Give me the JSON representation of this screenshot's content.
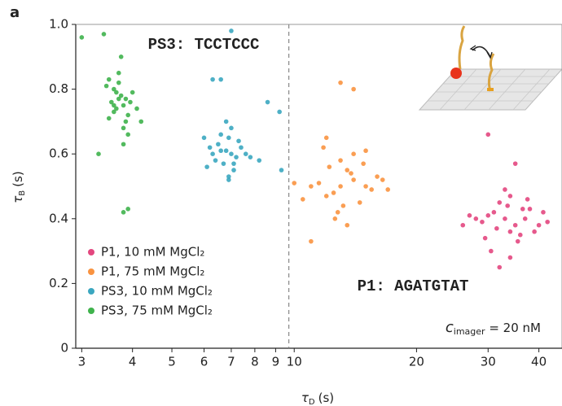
{
  "chart_data": {
    "type": "scatter",
    "panel_label": "a",
    "xlabel": {
      "symbol": "τ",
      "sub": "D",
      "unit": "(s)"
    },
    "ylabel": {
      "symbol": "τ",
      "sub": "B",
      "unit": "(s)"
    },
    "xscale": "log",
    "xlim": [
      2.9,
      45.6
    ],
    "ylim": [
      0,
      1.0
    ],
    "xticks": [
      3,
      4,
      5,
      6,
      7,
      8,
      9,
      10,
      20,
      30,
      40
    ],
    "yticks": [
      0,
      0.2,
      0.4,
      0.6,
      0.8,
      {
        "value": 1.0,
        "label": "1.0"
      }
    ],
    "vline": 9.7,
    "legend": "lower left",
    "annotations": {
      "ps3": "PS3: TCCTCCC",
      "p1": "P1: AGATGTAT",
      "conc": {
        "symbol": "c",
        "sub": "imager",
        "text": " = 20 nM"
      }
    },
    "series": [
      {
        "name": "P1, 10 mM MgCl₂",
        "color": "#e3477f",
        "x": [
          33,
          35,
          31,
          37,
          34,
          30,
          38,
          29,
          36,
          32,
          40,
          28,
          34,
          35.5,
          31.5,
          33.5,
          39,
          27,
          42,
          26,
          30.5,
          36.5,
          33,
          41,
          29.5,
          34,
          37.5,
          30,
          35,
          32
        ],
        "values": [
          0.4,
          0.38,
          0.42,
          0.4,
          0.36,
          0.41,
          0.43,
          0.39,
          0.35,
          0.45,
          0.38,
          0.4,
          0.47,
          0.33,
          0.37,
          0.44,
          0.36,
          0.41,
          0.39,
          0.38,
          0.3,
          0.43,
          0.49,
          0.42,
          0.34,
          0.28,
          0.46,
          0.66,
          0.57,
          0.25
        ]
      },
      {
        "name": "P1, 75 mM MgCl₂",
        "color": "#f99340",
        "x": [
          13,
          14,
          12.5,
          15,
          13.5,
          12,
          14.5,
          11.5,
          16,
          13,
          12.8,
          15.5,
          11,
          14,
          13.2,
          12.2,
          16.5,
          10,
          10.5,
          17,
          13.8,
          12.6,
          14.8,
          11.8,
          13,
          12,
          14,
          11,
          13.5,
          15
        ],
        "values": [
          0.5,
          0.52,
          0.48,
          0.5,
          0.55,
          0.47,
          0.45,
          0.51,
          0.53,
          0.58,
          0.42,
          0.49,
          0.5,
          0.6,
          0.44,
          0.56,
          0.52,
          0.51,
          0.46,
          0.49,
          0.54,
          0.4,
          0.57,
          0.62,
          0.82,
          0.65,
          0.8,
          0.33,
          0.38,
          0.61
        ]
      },
      {
        "name": "PS3, 10 mM MgCl₂",
        "color": "#3ba7c0",
        "x": [
          6.8,
          7.0,
          6.5,
          7.2,
          6.9,
          6.7,
          7.4,
          6.3,
          7.1,
          6.6,
          7.6,
          6.2,
          6.9,
          7.0,
          6.4,
          7.3,
          6.8,
          6.1,
          7.8,
          6.0,
          6.6,
          7.1,
          8.2,
          6.3,
          6.6,
          7.0,
          8.6,
          9.2,
          9.3,
          6.9
        ],
        "values": [
          0.61,
          0.6,
          0.63,
          0.59,
          0.65,
          0.57,
          0.62,
          0.6,
          0.55,
          0.66,
          0.6,
          0.62,
          0.53,
          0.68,
          0.58,
          0.64,
          0.7,
          0.56,
          0.59,
          0.65,
          0.61,
          0.57,
          0.58,
          0.83,
          0.83,
          0.98,
          0.76,
          0.73,
          0.55,
          0.52
        ]
      },
      {
        "name": "PS3, 75 mM MgCl₂",
        "color": "#3fb34c",
        "x": [
          3.7,
          3.8,
          3.6,
          3.9,
          3.75,
          3.65,
          3.85,
          3.55,
          4.0,
          3.7,
          3.8,
          3.6,
          3.95,
          3.7,
          3.5,
          4.1,
          3.75,
          3.9,
          3.65,
          3.8,
          3.45,
          4.2,
          3.4,
          3.85,
          3.6,
          3.5,
          3.0,
          3.8,
          3.9,
          3.3
        ],
        "values": [
          0.77,
          0.75,
          0.8,
          0.72,
          0.78,
          0.74,
          0.7,
          0.76,
          0.79,
          0.82,
          0.68,
          0.73,
          0.76,
          0.85,
          0.71,
          0.74,
          0.9,
          0.66,
          0.79,
          0.63,
          0.81,
          0.7,
          0.97,
          0.77,
          0.75,
          0.83,
          0.96,
          0.42,
          0.43,
          0.6
        ]
      }
    ]
  }
}
